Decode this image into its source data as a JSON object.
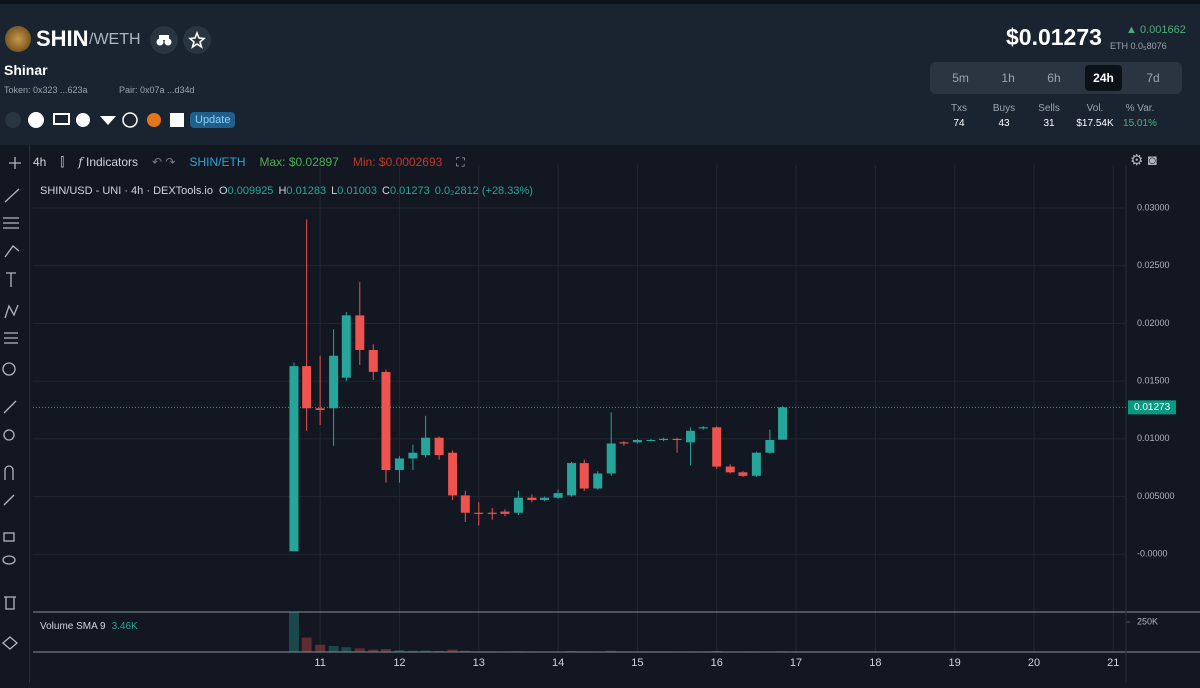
{
  "header": {
    "symbol": "SHIN",
    "pair": "/WETH",
    "name": "Shinar",
    "token": "Token: 0x323 ...623a",
    "pair_address": "Pair: 0x07a ...d34d",
    "update": "Update"
  },
  "price": {
    "usd": "$0.01273",
    "change": "0.001662",
    "eth": "ETH 0.0₅8076"
  },
  "timeframes": {
    "items": [
      "5m",
      "1h",
      "6h",
      "24h",
      "7d"
    ],
    "active": "24h"
  },
  "stats": [
    {
      "label": "Txs",
      "value": 74
    },
    {
      "label": "Buys",
      "value": 43
    },
    {
      "label": "Sells",
      "value": 31
    },
    {
      "label": "Vol.",
      "value": "$17.54K"
    },
    {
      "label": "% Var.",
      "value": "15.01%"
    }
  ],
  "toolbar": {
    "interval": "4h",
    "indicators": "Indicators",
    "pair": "SHIN/ETH",
    "max": "Max: $0.02897",
    "min": "Min: $0.0002693"
  },
  "legend": {
    "title": "SHIN/USD - UNI · 4h · DEXTools.io",
    "items": [
      {
        "label": "O",
        "value": 0.009925
      },
      {
        "label": "H",
        "value": 0.01283
      },
      {
        "label": "L",
        "value": 0.01003
      },
      {
        "label": "C",
        "value": 0.01273
      }
    ],
    "change": "0.0₂2812 (+28.33%)"
  },
  "volume_legend": {
    "title": "Volume SMA 9",
    "value": "3.46K"
  },
  "chart_data": {
    "type": "candlestick",
    "x": [
      10.67,
      10.83,
      11,
      11.17,
      11.33,
      11.5,
      11.67,
      11.83,
      12,
      12.17,
      12.33,
      12.5,
      12.67,
      12.83,
      13,
      13.17,
      13.33,
      13.5,
      13.67,
      13.83,
      14,
      14.17,
      14.33,
      14.5,
      14.67,
      14.83,
      15,
      15.17,
      15.33,
      15.5,
      15.67,
      15.83,
      16,
      16.17,
      16.33,
      16.5,
      16.67,
      16.83
    ],
    "open": [
      0.00026,
      0.0163,
      0.01265,
      0.01265,
      0.0153,
      0.0207,
      0.0177,
      0.0158,
      0.0073,
      0.0083,
      0.0086,
      0.0101,
      0.0088,
      0.0051,
      0.0036,
      0.0036,
      0.0037,
      0.0036,
      0.0049,
      0.0047,
      0.0049,
      0.0051,
      0.0079,
      0.0057,
      0.007,
      0.0097,
      0.0097,
      0.0099,
      0.0099,
      0.01,
      0.0097,
      0.0109,
      0.011,
      0.0076,
      0.0071,
      0.0068,
      0.0088,
      0.009925
    ],
    "high": [
      0.0166,
      0.029,
      0.0172,
      0.0195,
      0.021,
      0.0236,
      0.0182,
      0.016,
      0.0085,
      0.0095,
      0.012,
      0.0102,
      0.009,
      0.0055,
      0.0045,
      0.004,
      0.0039,
      0.0055,
      0.0052,
      0.005,
      0.0056,
      0.008,
      0.0082,
      0.0072,
      0.0123,
      0.0098,
      0.01,
      0.01,
      0.0101,
      0.0101,
      0.011,
      0.0111,
      0.0111,
      0.0078,
      0.0072,
      0.0089,
      0.0108,
      0.01283
    ],
    "low": [
      0.00026,
      0.0107,
      0.0112,
      0.0094,
      0.015,
      0.0164,
      0.0151,
      0.0062,
      0.0062,
      0.0073,
      0.0084,
      0.0082,
      0.0047,
      0.0028,
      0.0025,
      0.003,
      0.0033,
      0.0034,
      0.0045,
      0.0046,
      0.0048,
      0.005,
      0.0055,
      0.0056,
      0.0068,
      0.0094,
      0.0096,
      0.0098,
      0.0098,
      0.0088,
      0.0077,
      0.0108,
      0.0074,
      0.007,
      0.0067,
      0.0067,
      0.0087,
      0.01003
    ],
    "close": [
      0.0163,
      0.01265,
      0.0125,
      0.0172,
      0.0207,
      0.0177,
      0.0158,
      0.0073,
      0.0083,
      0.0088,
      0.0101,
      0.0086,
      0.0051,
      0.0036,
      0.0035,
      0.0035,
      0.0035,
      0.0049,
      0.0047,
      0.0049,
      0.0053,
      0.0079,
      0.0057,
      0.007,
      0.0096,
      0.0096,
      0.0099,
      0.0099,
      0.01,
      0.0099,
      0.0107,
      0.011,
      0.0076,
      0.0071,
      0.0068,
      0.0088,
      0.0099,
      0.01273
    ],
    "volume": [
      330000,
      120000,
      60000,
      50000,
      40000,
      30000,
      20000,
      25000,
      15000,
      10000,
      12000,
      8000,
      20000,
      10000,
      5000,
      5000,
      4000,
      6000,
      4000,
      3000,
      4000,
      8000,
      5000,
      4000,
      10000,
      3000,
      2000,
      2000,
      2000,
      2000,
      4000,
      3000,
      8000,
      3000,
      2000,
      4000,
      3000,
      6000
    ],
    "up_color": "#26a69a",
    "down_color": "#ef5350",
    "xlim": [
      7.38,
      21.16
    ],
    "xticks": [
      11,
      12,
      13,
      14,
      15,
      16,
      17,
      18,
      19,
      20,
      21
    ],
    "ylim": [
      -0.005,
      0.0326
    ],
    "yticks": [
      {
        "value": 0,
        "label": "-0.0000"
      },
      {
        "value": 0.005,
        "label": "0.005000"
      },
      {
        "value": 0.01,
        "label": "0.01000"
      },
      {
        "value": 0.015,
        "label": "0.01500"
      },
      {
        "value": 0.02,
        "label": "0.02000"
      },
      {
        "value": 0.025,
        "label": "0.02500"
      },
      {
        "value": 0.03,
        "label": "0.03000"
      }
    ],
    "volume_ylim": [
      0,
      333000
    ],
    "volume_yticks": [
      {
        "value": 250000,
        "label": "250K"
      }
    ],
    "grid": true
  }
}
